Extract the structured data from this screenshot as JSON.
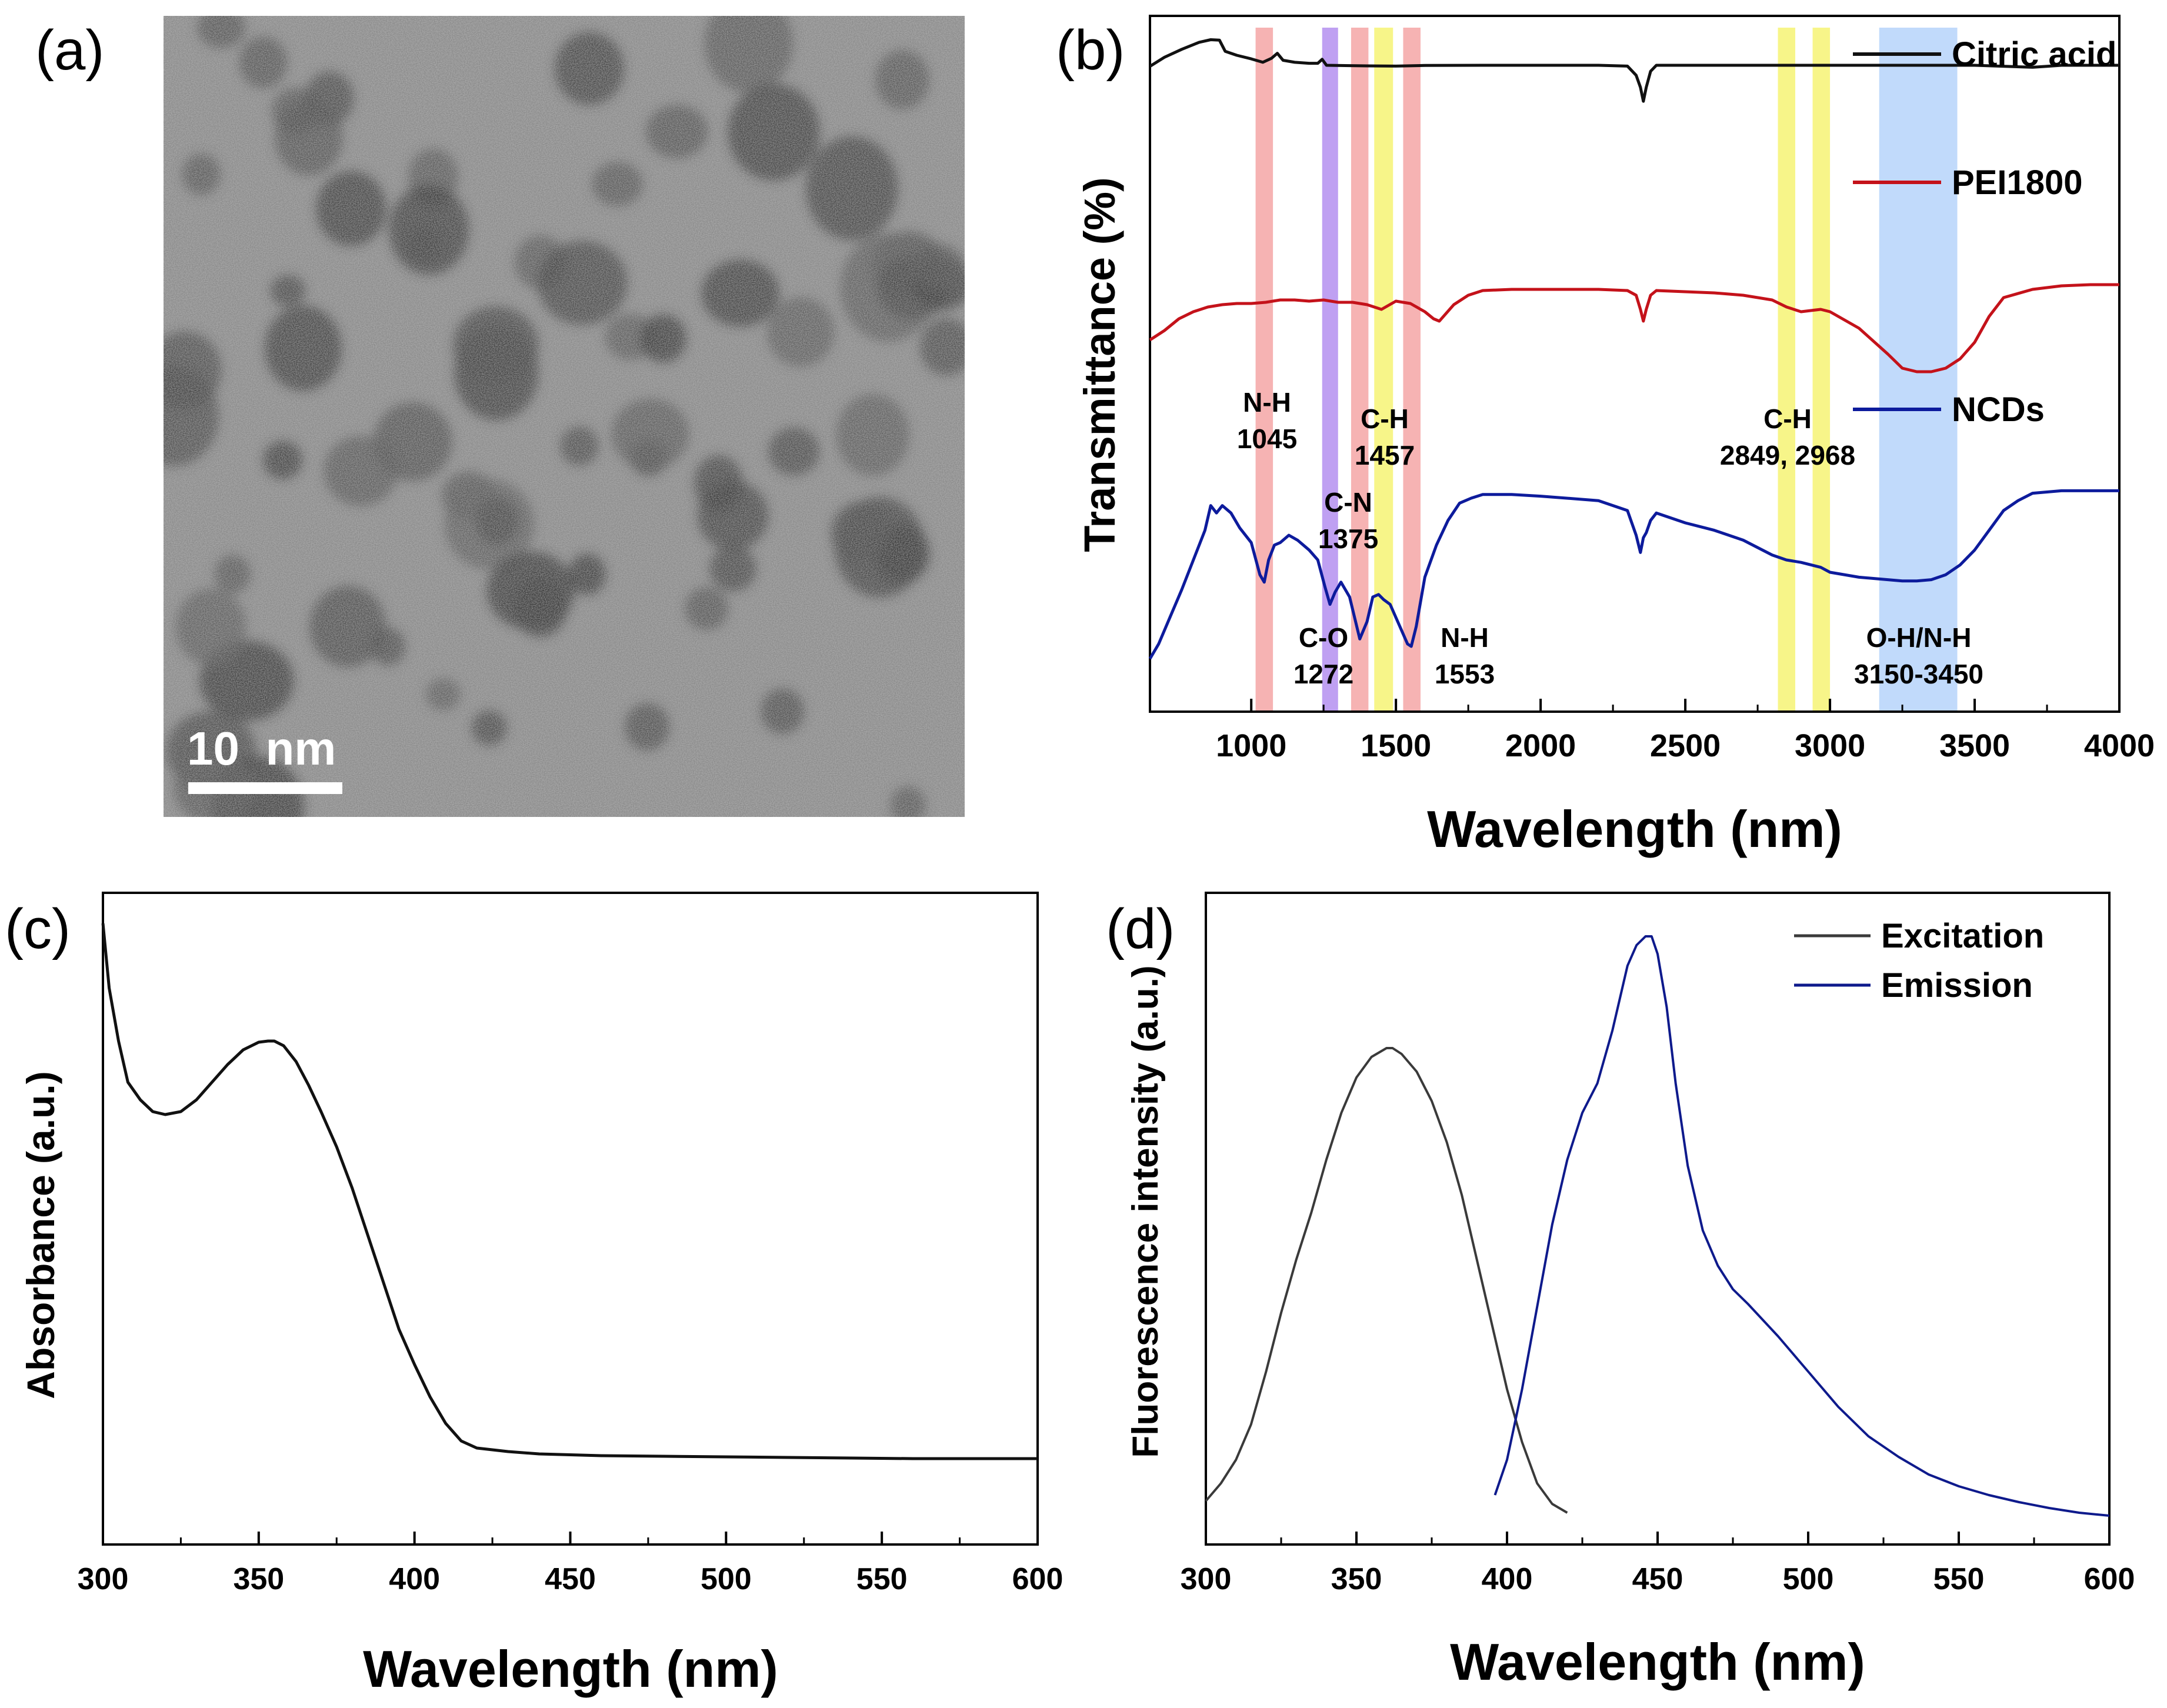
{
  "panels": {
    "a": {
      "label": "(a)",
      "scale_bar": "10  nm"
    },
    "b": {
      "label": "(b)"
    },
    "c": {
      "label": "(c)"
    },
    "d": {
      "label": "(d)"
    }
  },
  "colors": {
    "black": "#111111",
    "red": "#c4121a",
    "blue": "#0d1b9c",
    "gray": "#3a3a3a",
    "navy": "#0e1a8c",
    "pink_band": "#f4a6a6",
    "purple_band": "#b48ff0",
    "yellow_band": "#f6f374",
    "blue_band": "#b6d4fa"
  },
  "chart_data": [
    {
      "panel": "b",
      "type": "line",
      "title": "",
      "xlabel": "Wavelength (nm)",
      "ylabel": "Transmittance (%)",
      "xlim": [
        650,
        4000
      ],
      "ylim": [
        0,
        100
      ],
      "xticks": [
        1000,
        1500,
        2000,
        2500,
        3000,
        3500,
        4000
      ],
      "tick_labels": [
        "1000",
        "1500",
        "2000",
        "2500",
        "3000",
        "3500",
        "4000"
      ],
      "series": [
        {
          "name": "Citric acid",
          "color": "#111111",
          "x": [
            650,
            700,
            760,
            820,
            860,
            890,
            910,
            950,
            1000,
            1040,
            1070,
            1090,
            1110,
            1150,
            1200,
            1230,
            1245,
            1260,
            1400,
            1500,
            1600,
            1800,
            2000,
            2200,
            2300,
            2330,
            2345,
            2355,
            2365,
            2380,
            2400,
            2500,
            2600,
            2800,
            3000,
            3200,
            3500,
            3700,
            3750,
            3800,
            4000
          ],
          "y": [
            84.5,
            89,
            93,
            96.5,
            97.8,
            97.6,
            92,
            90,
            88.2,
            86.5,
            88.5,
            91,
            87.5,
            86.5,
            86,
            86,
            88,
            85,
            84.7,
            84.6,
            84.9,
            85,
            85,
            85,
            84.6,
            80,
            74,
            67,
            74,
            82,
            85,
            85,
            85,
            85,
            85,
            85,
            85,
            84,
            84.5,
            85,
            85
          ]
        },
        {
          "name": "PEI1800",
          "color": "#c4121a",
          "x": [
            650,
            700,
            750,
            800,
            850,
            900,
            950,
            1000,
            1050,
            1100,
            1150,
            1200,
            1250,
            1300,
            1350,
            1400,
            1450,
            1500,
            1550,
            1600,
            1630,
            1650,
            1700,
            1750,
            1800,
            1900,
            2000,
            2200,
            2300,
            2330,
            2345,
            2355,
            2365,
            2380,
            2400,
            2500,
            2600,
            2700,
            2800,
            2850,
            2900,
            2968,
            3000,
            3100,
            3200,
            3250,
            3300,
            3350,
            3400,
            3450,
            3500,
            3550,
            3600,
            3700,
            3800,
            3900,
            4000
          ],
          "y": [
            48,
            52,
            57,
            60,
            62,
            63,
            63.5,
            63.5,
            64,
            65,
            65,
            64.5,
            65,
            64,
            64,
            63,
            61,
            64.5,
            63.5,
            60,
            57,
            56,
            63,
            67,
            69,
            69.5,
            69.5,
            69.5,
            69,
            67,
            61,
            56,
            61,
            67,
            69,
            68.5,
            68,
            67,
            65,
            62,
            60,
            61,
            60,
            53,
            42,
            36,
            34.5,
            34.5,
            36,
            40,
            47,
            58,
            66,
            69.5,
            71,
            71.5,
            71.5
          ]
        },
        {
          "name": "NCDs",
          "color": "#0d1b9c",
          "x": [
            650,
            680,
            720,
            760,
            800,
            840,
            860,
            880,
            900,
            930,
            960,
            1000,
            1030,
            1045,
            1060,
            1080,
            1100,
            1130,
            1160,
            1200,
            1230,
            1255,
            1272,
            1290,
            1310,
            1340,
            1375,
            1400,
            1420,
            1440,
            1457,
            1480,
            1510,
            1540,
            1553,
            1570,
            1600,
            1640,
            1680,
            1720,
            1760,
            1800,
            1900,
            2000,
            2200,
            2300,
            2330,
            2345,
            2355,
            2365,
            2380,
            2400,
            2500,
            2600,
            2700,
            2800,
            2849,
            2900,
            2968,
            3000,
            3100,
            3200,
            3250,
            3300,
            3350,
            3400,
            3450,
            3500,
            3550,
            3600,
            3650,
            3700,
            3800,
            4000
          ],
          "y": [
            0,
            6,
            17,
            28,
            40,
            52,
            62,
            59,
            62,
            59,
            53,
            47,
            34,
            31,
            40,
            46,
            47,
            50,
            48,
            44,
            40,
            29,
            22,
            27,
            31,
            25,
            8,
            15,
            25,
            26,
            24,
            22,
            14,
            6,
            5,
            13,
            33,
            46,
            56,
            63,
            65,
            66.5,
            66.5,
            65.8,
            64,
            60,
            50,
            43,
            49,
            51,
            56,
            59,
            55,
            52,
            48,
            42,
            40,
            39,
            37,
            35,
            33,
            32,
            31.5,
            31.5,
            32,
            34,
            38,
            44,
            52,
            60,
            64,
            67,
            68,
            68
          ]
        }
      ],
      "bands": [
        {
          "range": [
            1015,
            1075
          ],
          "color": "#f4a6a6"
        },
        {
          "range": [
            1245,
            1300
          ],
          "color": "#b48ff0"
        },
        {
          "range": [
            1345,
            1405
          ],
          "color": "#f4a6a6"
        },
        {
          "range": [
            1425,
            1490
          ],
          "color": "#f6f374"
        },
        {
          "range": [
            1525,
            1585
          ],
          "color": "#f4a6a6"
        },
        {
          "range": [
            2820,
            2880
          ],
          "color": "#f6f374"
        },
        {
          "range": [
            2940,
            3000
          ],
          "color": "#f6f374"
        },
        {
          "range": [
            3170,
            3440
          ],
          "color": "#b6d4fa"
        }
      ],
      "annotations": [
        {
          "lines": [
            "N-H",
            "1045"
          ]
        },
        {
          "lines": [
            "C-H",
            "1457"
          ]
        },
        {
          "lines": [
            "C-N",
            "1375"
          ]
        },
        {
          "lines": [
            "C-O",
            "1272"
          ]
        },
        {
          "lines": [
            "N-H",
            "1553"
          ]
        },
        {
          "lines": [
            "C-H",
            "2849, 2968"
          ]
        },
        {
          "lines": [
            "O-H/N-H",
            "3150-3450"
          ]
        }
      ]
    },
    {
      "panel": "c",
      "type": "line",
      "title": "",
      "xlabel": "Wavelength (nm)",
      "ylabel": "Absorbance (a.u.)",
      "xlim": [
        300,
        600
      ],
      "ylim": [
        0,
        100
      ],
      "xticks": [
        300,
        350,
        400,
        450,
        500,
        550,
        600
      ],
      "tick_labels": [
        "300",
        "350",
        "400",
        "450",
        "500",
        "550",
        "600"
      ],
      "series": [
        {
          "name": "Absorbance",
          "color": "#111111",
          "x": [
            300,
            302,
            305,
            308,
            312,
            316,
            320,
            325,
            330,
            335,
            340,
            345,
            350,
            353,
            355,
            358,
            362,
            366,
            370,
            375,
            380,
            385,
            390,
            395,
            400,
            405,
            410,
            415,
            420,
            430,
            440,
            460,
            480,
            500,
            520,
            540,
            560,
            580,
            600
          ],
          "y": [
            100,
            89,
            80,
            73,
            70,
            68,
            67.5,
            68,
            70,
            73,
            76,
            78.5,
            79.8,
            80,
            80,
            79.2,
            76.5,
            72.5,
            68,
            62,
            55,
            47,
            39,
            31,
            25,
            19.5,
            15,
            12,
            10.8,
            10.2,
            9.8,
            9.5,
            9.4,
            9.3,
            9.2,
            9.1,
            9.0,
            9.0,
            9.0
          ]
        }
      ]
    },
    {
      "panel": "d",
      "type": "line",
      "title": "",
      "xlabel": "Wavelength (nm)",
      "ylabel": "Fluorescence intensity (a.u.)",
      "xlim": [
        300,
        600
      ],
      "ylim": [
        0,
        100
      ],
      "xticks": [
        300,
        350,
        400,
        450,
        500,
        550,
        600
      ],
      "tick_labels": [
        "300",
        "350",
        "400",
        "450",
        "500",
        "550",
        "600"
      ],
      "legend": [
        "Excitation",
        "Emission"
      ],
      "series": [
        {
          "name": "Excitation",
          "color": "#3a3a3a",
          "x": [
            300,
            305,
            310,
            315,
            320,
            325,
            330,
            335,
            340,
            345,
            350,
            355,
            360,
            362,
            365,
            370,
            375,
            380,
            385,
            390,
            395,
            400,
            405,
            410,
            415,
            420
          ],
          "y": [
            4,
            7,
            11,
            17,
            26,
            36,
            45,
            53,
            62,
            70,
            76,
            79.5,
            81,
            81,
            80,
            77,
            72,
            65,
            56,
            45,
            34,
            23,
            14,
            7,
            3.5,
            2
          ]
        },
        {
          "name": "Emission",
          "color": "#0e1a8c",
          "x": [
            396,
            400,
            405,
            410,
            415,
            420,
            425,
            430,
            435,
            440,
            443,
            446,
            448,
            450,
            453,
            456,
            460,
            465,
            470,
            475,
            480,
            490,
            500,
            510,
            520,
            530,
            540,
            550,
            560,
            570,
            580,
            590,
            600
          ],
          "y": [
            5,
            11,
            23,
            37,
            51,
            62,
            70,
            75,
            84,
            95,
            98.5,
            100,
            100,
            97,
            88,
            75,
            61,
            50,
            44,
            40,
            37.5,
            32,
            26,
            20,
            15,
            11.5,
            8.5,
            6.5,
            5,
            3.8,
            2.8,
            2,
            1.5
          ]
        }
      ]
    }
  ]
}
